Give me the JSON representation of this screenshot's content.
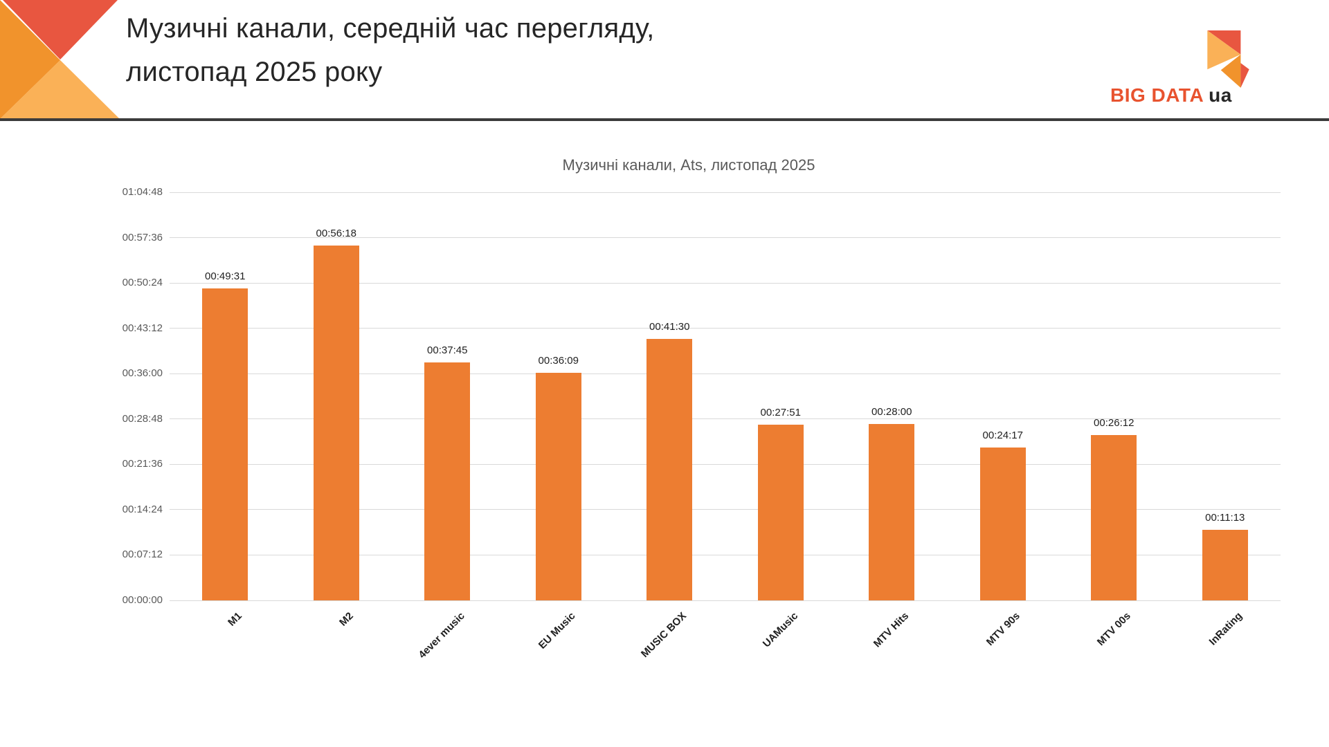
{
  "header": {
    "title_line1": "Музичні канали, середній час перегляду,",
    "title_line2": "листопад 2025 року",
    "logo": {
      "main": "BIG DATA",
      "suffix": "ua"
    }
  },
  "colors": {
    "bar": "#ED7D31",
    "gridline": "#D9D9D9",
    "deco_red": "#E85640",
    "deco_orange": "#F1932C",
    "deco_light_orange": "#FAB157",
    "logo_orange": "#E8532F",
    "logo_dark": "#262626",
    "divider": "#3B3B3B",
    "axis_text": "#595959"
  },
  "chart_data": {
    "type": "bar",
    "title": "Музичні канали, Ats, листопад 2025",
    "xlabel": "",
    "ylabel": "",
    "grid": true,
    "legend": "none",
    "categories": [
      "M1",
      "M2",
      "4ever music",
      "EU Music",
      "MUSIC BOX",
      "UAMusic",
      "MTV Hits",
      "MTV 90s",
      "MTV 00s",
      "InRating"
    ],
    "values": [
      "00:49:31",
      "00:56:18",
      "00:37:45",
      "00:36:09",
      "00:41:30",
      "00:27:51",
      "00:28:00",
      "00:24:17",
      "00:26:12",
      "00:11:13"
    ],
    "values_seconds": [
      2971,
      3378,
      2265,
      2169,
      2490,
      1671,
      1680,
      1457,
      1572,
      673
    ],
    "y_ticks": [
      "01:04:48",
      "00:57:36",
      "00:50:24",
      "00:43:12",
      "00:36:00",
      "00:28:48",
      "00:21:36",
      "00:14:24",
      "00:07:12",
      "00:00:00"
    ],
    "y_tick_interval": "00:07:12",
    "ylim_seconds": [
      0,
      3888
    ],
    "bar_color": "#ED7D31"
  }
}
